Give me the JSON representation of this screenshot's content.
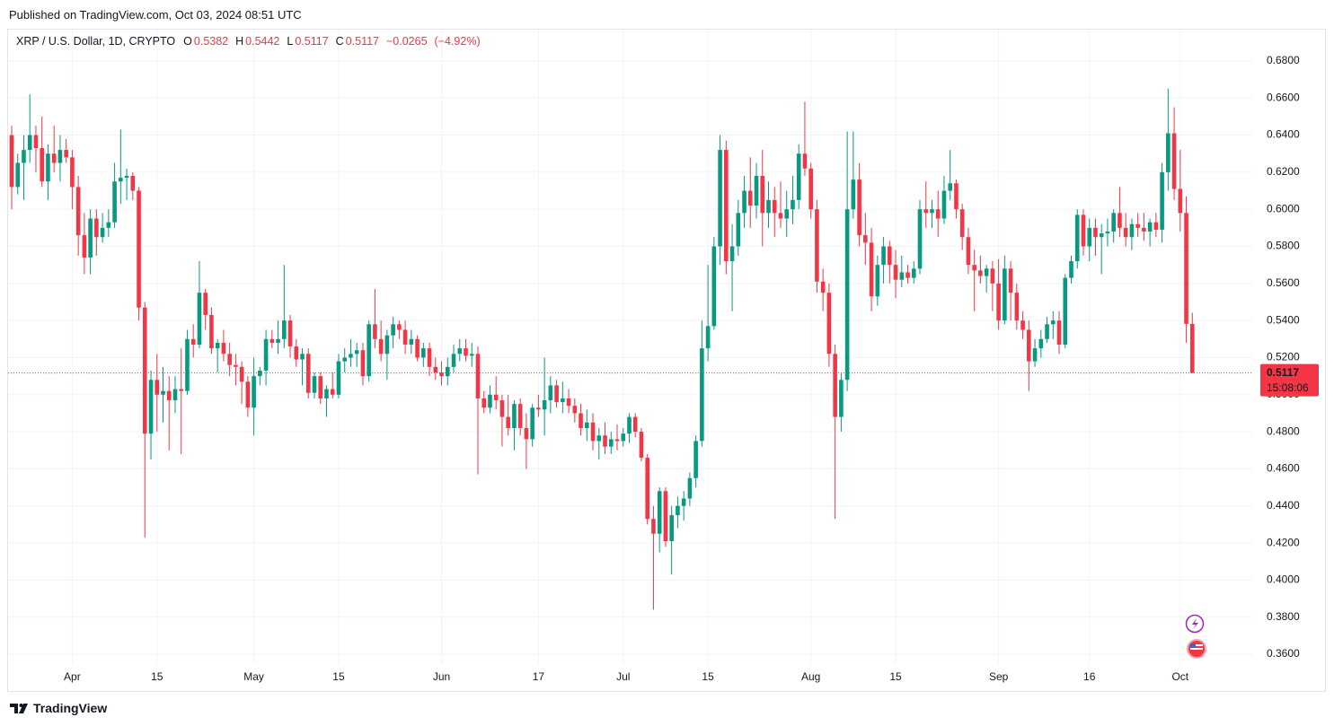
{
  "published": "Published on TradingView.com, Oct 03, 2024 08:51 UTC",
  "brand": "TradingView",
  "chart_data": {
    "type": "candlestick",
    "symbol": "XRP / U.S. Dollar, 1D, CRYPTO",
    "ohlc_legend": [
      {
        "label": "O",
        "value": 0.5382
      },
      {
        "label": "H",
        "value": 0.5442
      },
      {
        "label": "L",
        "value": 0.5117
      },
      {
        "label": "C",
        "value": 0.5117
      }
    ],
    "change": {
      "value": -0.0265,
      "label": "−0.0265"
    },
    "change_pct": {
      "value": -4.92,
      "label": "(−4.92%)"
    },
    "categories": [
      null,
      null,
      null,
      null,
      null,
      null,
      null,
      null,
      null,
      null,
      "Apr",
      null,
      null,
      null,
      null,
      null,
      null,
      null,
      null,
      null,
      null,
      null,
      null,
      null,
      "15",
      null,
      null,
      null,
      null,
      null,
      null,
      null,
      null,
      null,
      null,
      null,
      null,
      null,
      null,
      null,
      "May",
      null,
      null,
      null,
      null,
      null,
      null,
      null,
      null,
      null,
      null,
      null,
      null,
      null,
      "15",
      null,
      null,
      null,
      null,
      null,
      null,
      null,
      null,
      null,
      null,
      null,
      null,
      null,
      null,
      null,
      null,
      "Jun",
      null,
      null,
      null,
      null,
      null,
      null,
      null,
      null,
      null,
      null,
      null,
      null,
      null,
      null,
      null,
      "17",
      null,
      null,
      null,
      null,
      null,
      null,
      null,
      null,
      null,
      null,
      null,
      null,
      null,
      "Jul",
      null,
      null,
      null,
      null,
      null,
      null,
      null,
      null,
      null,
      null,
      null,
      null,
      null,
      "15",
      null,
      null,
      null,
      null,
      null,
      null,
      null,
      null,
      null,
      null,
      null,
      null,
      null,
      null,
      null,
      null,
      "Aug",
      null,
      null,
      null,
      null,
      null,
      null,
      null,
      null,
      null,
      null,
      null,
      null,
      null,
      "15",
      null,
      null,
      null,
      null,
      null,
      null,
      null,
      null,
      null,
      null,
      null,
      null,
      null,
      null,
      null,
      null,
      "Sep",
      null,
      null,
      null,
      null,
      null,
      null,
      null,
      null,
      null,
      null,
      null,
      null,
      null,
      null,
      "16",
      null,
      null,
      null,
      null,
      null,
      null,
      null,
      null,
      null,
      null,
      null,
      null,
      null,
      null,
      "Oct",
      null,
      null
    ],
    "open": [
      0.64,
      0.612,
      0.625,
      0.632,
      0.64,
      0.633,
      0.615,
      0.63,
      0.625,
      0.632,
      0.628,
      0.612,
      0.586,
      0.574,
      0.595,
      0.585,
      0.59,
      0.593,
      0.615,
      0.617,
      0.618,
      0.61,
      0.547,
      0.479,
      0.508,
      0.5,
      0.502,
      0.497,
      0.503,
      0.502,
      0.53,
      0.527,
      0.555,
      0.543,
      0.525,
      0.528,
      0.522,
      0.516,
      0.515,
      0.507,
      0.493,
      0.51,
      0.513,
      0.53,
      0.528,
      0.53,
      0.54,
      0.526,
      0.519,
      0.522,
      0.501,
      0.51,
      0.498,
      0.503,
      0.5,
      0.518,
      0.52,
      0.522,
      0.524,
      0.51,
      0.538,
      0.53,
      0.522,
      0.532,
      0.538,
      0.535,
      0.527,
      0.53,
      0.52,
      0.525,
      0.515,
      0.512,
      0.51,
      0.515,
      0.522,
      0.525,
      0.521,
      0.522,
      0.498,
      0.493,
      0.5,
      0.497,
      0.488,
      0.482,
      0.495,
      0.482,
      0.476,
      0.493,
      0.492,
      0.497,
      0.505,
      0.496,
      0.498,
      0.494,
      0.49,
      0.482,
      0.485,
      0.475,
      0.478,
      0.472,
      0.476,
      0.475,
      0.479,
      0.488,
      0.48,
      0.466,
      0.433,
      0.425,
      0.448,
      0.421,
      0.435,
      0.44,
      0.444,
      0.455,
      0.475,
      0.525,
      0.537,
      0.58,
      0.632,
      0.572,
      0.58,
      0.598,
      0.61,
      0.602,
      0.618,
      0.598,
      0.605,
      0.598,
      0.595,
      0.6,
      0.605,
      0.63,
      0.622,
      0.6,
      0.561,
      0.555,
      0.522,
      0.488,
      0.508,
      0.6,
      0.616,
      0.586,
      0.582,
      0.553,
      0.57,
      0.58,
      0.57,
      0.562,
      0.566,
      0.563,
      0.568,
      0.6,
      0.598,
      0.6,
      0.595,
      0.61,
      0.614,
      0.6,
      0.585,
      0.57,
      0.567,
      0.564,
      0.568,
      0.56,
      0.54,
      0.568,
      0.555,
      0.54,
      0.535,
      0.518,
      0.525,
      0.53,
      0.538,
      0.54,
      0.527,
      0.563,
      0.572,
      0.597,
      0.58,
      0.59,
      0.585,
      0.587,
      0.588,
      0.598,
      0.59,
      0.585,
      0.592,
      0.59,
      0.588,
      0.593,
      0.589,
      0.62,
      0.641,
      0.611,
      0.598,
      0.5382
    ],
    "high": [
      0.645,
      0.63,
      0.64,
      0.662,
      0.645,
      0.65,
      0.635,
      0.645,
      0.64,
      0.638,
      0.632,
      0.618,
      0.598,
      0.6,
      0.6,
      0.598,
      0.6,
      0.625,
      0.643,
      0.622,
      0.62,
      0.612,
      0.55,
      0.513,
      0.522,
      0.515,
      0.51,
      0.51,
      0.525,
      0.535,
      0.538,
      0.572,
      0.557,
      0.547,
      0.53,
      0.535,
      0.528,
      0.522,
      0.518,
      0.51,
      0.52,
      0.515,
      0.535,
      0.535,
      0.54,
      0.57,
      0.543,
      0.53,
      0.525,
      0.525,
      0.512,
      0.512,
      0.505,
      0.512,
      0.522,
      0.525,
      0.53,
      0.528,
      0.528,
      0.54,
      0.557,
      0.54,
      0.535,
      0.542,
      0.54,
      0.54,
      0.535,
      0.532,
      0.528,
      0.528,
      0.52,
      0.518,
      0.52,
      0.527,
      0.53,
      0.53,
      0.528,
      0.526,
      0.502,
      0.505,
      0.51,
      0.5,
      0.5,
      0.497,
      0.498,
      0.49,
      0.495,
      0.5,
      0.52,
      0.51,
      0.508,
      0.507,
      0.503,
      0.498,
      0.495,
      0.492,
      0.49,
      0.482,
      0.485,
      0.48,
      0.484,
      0.482,
      0.49,
      0.49,
      0.482,
      0.468,
      0.44,
      0.45,
      0.45,
      0.44,
      0.445,
      0.448,
      0.458,
      0.478,
      0.54,
      0.57,
      0.585,
      0.64,
      0.637,
      0.592,
      0.605,
      0.618,
      0.628,
      0.625,
      0.632,
      0.615,
      0.612,
      0.615,
      0.61,
      0.618,
      0.635,
      0.658,
      0.625,
      0.605,
      0.568,
      0.56,
      0.527,
      0.512,
      0.642,
      0.642,
      0.625,
      0.598,
      0.59,
      0.575,
      0.585,
      0.583,
      0.578,
      0.575,
      0.57,
      0.572,
      0.605,
      0.615,
      0.605,
      0.61,
      0.618,
      0.632,
      0.616,
      0.603,
      0.59,
      0.578,
      0.575,
      0.57,
      0.572,
      0.573,
      0.575,
      0.572,
      0.56,
      0.545,
      0.54,
      0.53,
      0.535,
      0.542,
      0.545,
      0.545,
      0.565,
      0.575,
      0.6,
      0.6,
      0.595,
      0.595,
      0.592,
      0.595,
      0.6,
      0.612,
      0.598,
      0.595,
      0.598,
      0.598,
      0.595,
      0.598,
      0.625,
      0.665,
      0.655,
      0.632,
      0.607,
      0.5442
    ],
    "low": [
      0.6,
      0.608,
      0.605,
      0.625,
      0.62,
      0.612,
      0.605,
      0.62,
      0.615,
      0.625,
      0.6,
      0.575,
      0.565,
      0.565,
      0.575,
      0.582,
      0.585,
      0.59,
      0.603,
      0.605,
      0.605,
      0.54,
      0.423,
      0.465,
      0.48,
      0.485,
      0.47,
      0.49,
      0.468,
      0.5,
      0.52,
      0.525,
      0.535,
      0.522,
      0.512,
      0.518,
      0.51,
      0.505,
      0.495,
      0.488,
      0.478,
      0.505,
      0.505,
      0.525,
      0.522,
      0.525,
      0.52,
      0.515,
      0.505,
      0.498,
      0.498,
      0.495,
      0.488,
      0.498,
      0.498,
      0.512,
      0.515,
      0.515,
      0.505,
      0.507,
      0.525,
      0.518,
      0.508,
      0.525,
      0.53,
      0.522,
      0.522,
      0.518,
      0.515,
      0.51,
      0.508,
      0.505,
      0.505,
      0.512,
      0.518,
      0.518,
      0.515,
      0.457,
      0.49,
      0.49,
      0.492,
      0.472,
      0.478,
      0.47,
      0.478,
      0.46,
      0.472,
      0.488,
      0.478,
      0.49,
      0.493,
      0.49,
      0.49,
      0.485,
      0.478,
      0.475,
      0.47,
      0.465,
      0.468,
      0.468,
      0.47,
      0.472,
      0.474,
      0.477,
      0.464,
      0.43,
      0.384,
      0.415,
      0.418,
      0.403,
      0.428,
      0.432,
      0.44,
      0.45,
      0.472,
      0.518,
      0.535,
      0.57,
      0.565,
      0.545,
      0.575,
      0.59,
      0.59,
      0.595,
      0.58,
      0.59,
      0.585,
      0.59,
      0.585,
      0.592,
      0.6,
      0.618,
      0.595,
      0.555,
      0.545,
      0.515,
      0.433,
      0.48,
      0.502,
      0.595,
      0.58,
      0.57,
      0.545,
      0.548,
      0.56,
      0.56,
      0.552,
      0.558,
      0.56,
      0.56,
      0.565,
      0.59,
      0.59,
      0.585,
      0.592,
      0.605,
      0.595,
      0.578,
      0.565,
      0.545,
      0.56,
      0.555,
      0.545,
      0.535,
      0.538,
      0.54,
      0.535,
      0.53,
      0.502,
      0.515,
      0.52,
      0.528,
      0.53,
      0.522,
      0.525,
      0.56,
      0.568,
      0.575,
      0.572,
      0.575,
      0.565,
      0.58,
      0.582,
      0.585,
      0.58,
      0.578,
      0.585,
      0.583,
      0.58,
      0.585,
      0.582,
      0.61,
      0.605,
      0.588,
      0.528,
      0.5117
    ],
    "close": [
      0.612,
      0.625,
      0.632,
      0.64,
      0.633,
      0.615,
      0.63,
      0.625,
      0.632,
      0.628,
      0.612,
      0.586,
      0.574,
      0.595,
      0.585,
      0.59,
      0.593,
      0.615,
      0.617,
      0.618,
      0.61,
      0.547,
      0.479,
      0.508,
      0.5,
      0.502,
      0.497,
      0.503,
      0.502,
      0.53,
      0.527,
      0.555,
      0.543,
      0.525,
      0.528,
      0.522,
      0.516,
      0.515,
      0.507,
      0.493,
      0.51,
      0.513,
      0.53,
      0.528,
      0.53,
      0.54,
      0.526,
      0.519,
      0.522,
      0.501,
      0.51,
      0.498,
      0.503,
      0.5,
      0.518,
      0.52,
      0.522,
      0.524,
      0.51,
      0.538,
      0.53,
      0.522,
      0.532,
      0.538,
      0.535,
      0.527,
      0.53,
      0.52,
      0.525,
      0.515,
      0.512,
      0.51,
      0.515,
      0.522,
      0.525,
      0.521,
      0.522,
      0.498,
      0.493,
      0.5,
      0.497,
      0.488,
      0.482,
      0.495,
      0.482,
      0.476,
      0.493,
      0.492,
      0.497,
      0.505,
      0.496,
      0.498,
      0.494,
      0.49,
      0.482,
      0.485,
      0.475,
      0.478,
      0.472,
      0.476,
      0.475,
      0.479,
      0.488,
      0.48,
      0.466,
      0.433,
      0.425,
      0.448,
      0.421,
      0.435,
      0.44,
      0.444,
      0.455,
      0.475,
      0.525,
      0.537,
      0.58,
      0.632,
      0.572,
      0.58,
      0.598,
      0.61,
      0.602,
      0.618,
      0.598,
      0.605,
      0.598,
      0.595,
      0.6,
      0.605,
      0.63,
      0.622,
      0.6,
      0.561,
      0.555,
      0.522,
      0.488,
      0.508,
      0.6,
      0.616,
      0.586,
      0.582,
      0.553,
      0.57,
      0.58,
      0.57,
      0.562,
      0.566,
      0.563,
      0.568,
      0.6,
      0.598,
      0.6,
      0.595,
      0.61,
      0.614,
      0.6,
      0.585,
      0.57,
      0.567,
      0.564,
      0.568,
      0.56,
      0.54,
      0.568,
      0.555,
      0.54,
      0.535,
      0.518,
      0.525,
      0.53,
      0.538,
      0.54,
      0.527,
      0.563,
      0.572,
      0.597,
      0.58,
      0.59,
      0.585,
      0.587,
      0.588,
      0.598,
      0.59,
      0.585,
      0.592,
      0.59,
      0.588,
      0.593,
      0.589,
      0.62,
      0.641,
      0.611,
      0.598,
      0.5382,
      0.5117
    ],
    "up_color": "#089981",
    "down_color": "#f23645",
    "ylim": [
      0.3547,
      0.6969
    ],
    "yticks": [
      {
        "value": 0.36,
        "label": "0.3600"
      },
      {
        "value": 0.38,
        "label": "0.3800"
      },
      {
        "value": 0.4,
        "label": "0.4000"
      },
      {
        "value": 0.42,
        "label": "0.4200"
      },
      {
        "value": 0.44,
        "label": "0.4400"
      },
      {
        "value": 0.46,
        "label": "0.4600"
      },
      {
        "value": 0.48,
        "label": "0.4800"
      },
      {
        "value": 0.5,
        "label": "0.5000"
      },
      {
        "value": 0.52,
        "label": "0.5200"
      },
      {
        "value": 0.54,
        "label": "0.5400"
      },
      {
        "value": 0.56,
        "label": "0.5600"
      },
      {
        "value": 0.58,
        "label": "0.5800"
      },
      {
        "value": 0.6,
        "label": "0.6000"
      },
      {
        "value": 0.62,
        "label": "0.6200"
      },
      {
        "value": 0.64,
        "label": "0.6400"
      },
      {
        "value": 0.66,
        "label": "0.6600"
      },
      {
        "value": 0.68,
        "label": "0.6800"
      }
    ],
    "grid": true,
    "last_price": {
      "value": 0.5117,
      "label": "0.5117"
    },
    "countdown": "15:08:06"
  }
}
